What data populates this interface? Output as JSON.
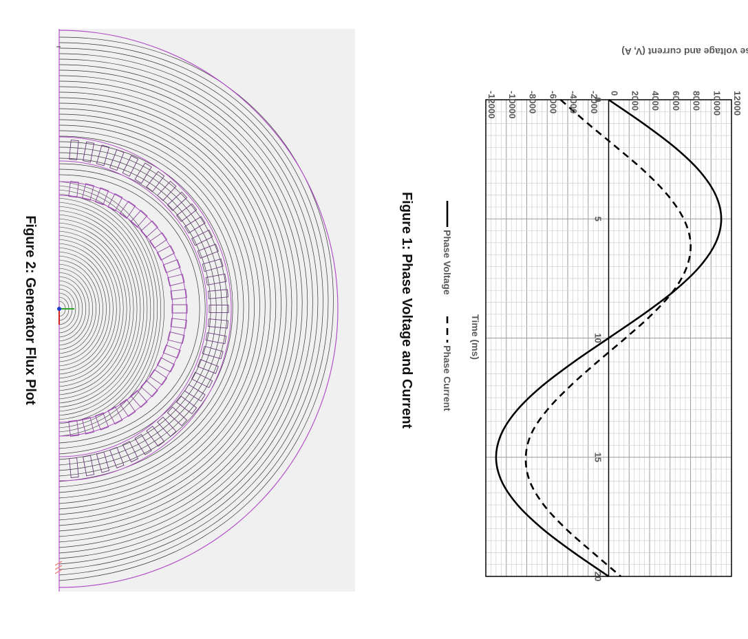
{
  "figures": {
    "figure1_caption": "Figure 1: Phase Voltage and Current",
    "figure2_caption": "Figure 2: Generator Flux Plot"
  },
  "chart_data": {
    "type": "line",
    "title": "",
    "xlabel": "Time (ms)",
    "ylabel": "Phase voltage and current (V, A)",
    "xlim": [
      0,
      20
    ],
    "ylim": [
      -12000,
      12000
    ],
    "x_ticks": [
      "0",
      "5",
      "10",
      "15",
      "20"
    ],
    "y_ticks": [
      "-12000",
      "-10000",
      "-8000",
      "-6000",
      "-4000",
      "-2000",
      "0",
      "2000",
      "4000",
      "6000",
      "8000",
      "10000",
      "12000"
    ],
    "grid": true,
    "legend_position": "bottom",
    "series": [
      {
        "name": "Phase Voltage",
        "style": "solid",
        "color": "#000000",
        "x": [
          0,
          1,
          2,
          3,
          4,
          5,
          6,
          7,
          8,
          9,
          10,
          11,
          12,
          13,
          14,
          15,
          16,
          17,
          18,
          19,
          20
        ],
        "values": [
          0,
          3400,
          6470,
          8900,
          10460,
          11000,
          10460,
          8900,
          6470,
          3400,
          0,
          -3400,
          -6470,
          -8900,
          -10460,
          -11000,
          -10460,
          -8900,
          -6470,
          -3400,
          0
        ]
      },
      {
        "name": "Phase Current",
        "style": "dashed",
        "color": "#000000",
        "x": [
          0,
          1,
          2,
          3,
          4,
          5,
          6,
          7,
          8,
          9,
          10,
          11,
          12,
          13,
          14,
          15,
          16,
          17,
          18,
          19,
          20
        ],
        "values": [
          -4700,
          -2030,
          780,
          3500,
          5760,
          7330,
          8000,
          7650,
          6360,
          4250,
          1650,
          -1100,
          -3720,
          -5970,
          -7540,
          -8100,
          -7710,
          -6340,
          -4180,
          -1540,
          1180
        ]
      }
    ]
  },
  "flux_plot": {
    "background": "#f0f0f0",
    "boundary_color": "#b24fc8",
    "line_color": "#333333"
  }
}
